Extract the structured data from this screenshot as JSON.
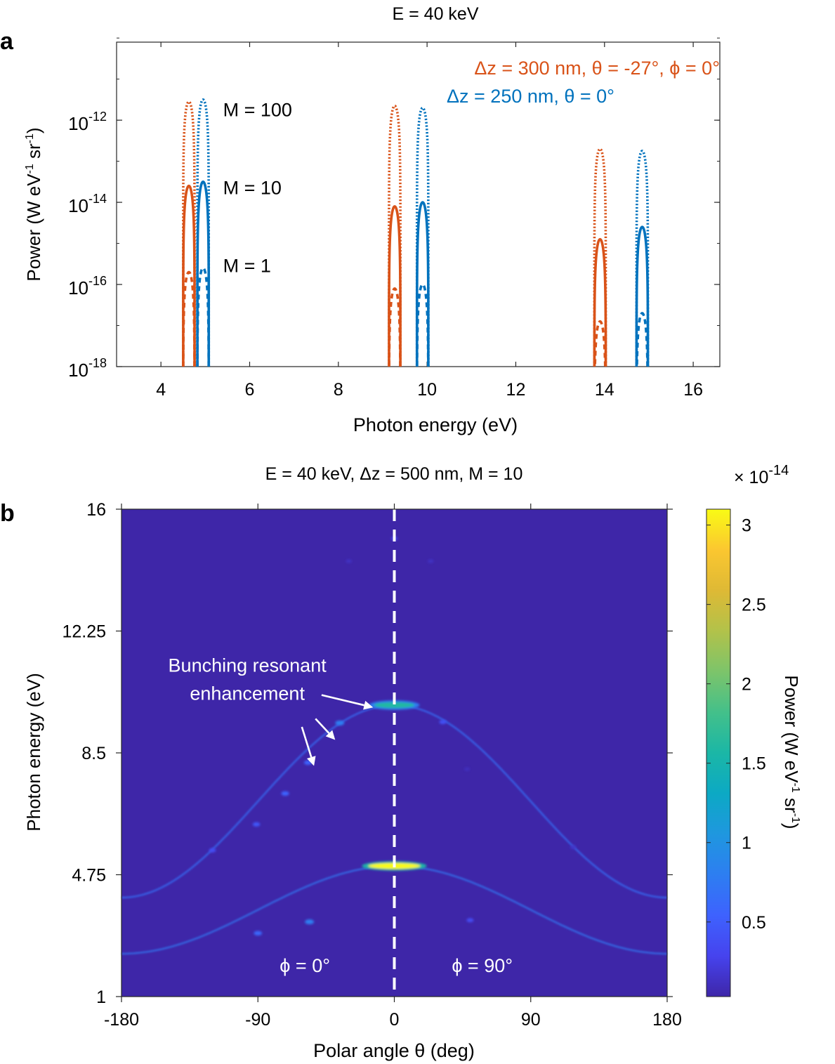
{
  "chart_data": [
    {
      "type": "line",
      "panel_label": "a",
      "title": "E = 40 keV",
      "xlabel": "Photon energy (eV)",
      "ylabel_parts": [
        "Power (W eV",
        "-1",
        " sr",
        "-1",
        ")"
      ],
      "x_ticks": [
        4,
        6,
        8,
        10,
        12,
        14,
        16
      ],
      "xlim": [
        3.0,
        16.6
      ],
      "ylim_log10": [
        -18,
        -10.1
      ],
      "y_ticks": [
        {
          "exp": -12,
          "label": "10",
          "sup": "-12"
        },
        {
          "exp": -14,
          "label": "10",
          "sup": "-14"
        },
        {
          "exp": -16,
          "label": "10",
          "sup": "-16"
        },
        {
          "exp": -18,
          "label": "10",
          "sup": "-18"
        }
      ],
      "legend": [
        {
          "text": "Δz = 300 nm, θ = -27°, ϕ = 0°",
          "color": "#D95319"
        },
        {
          "text": "Δz = 250 nm, θ = 0°",
          "color": "#0072BD"
        }
      ],
      "annotations": [
        {
          "text": "M = 100",
          "x": 5.4,
          "y_log10": -11.75
        },
        {
          "text": "M = 10",
          "x": 5.4,
          "y_log10": -13.65
        },
        {
          "text": "M = 1",
          "x": 5.4,
          "y_log10": -15.55
        }
      ],
      "peak_width_ev": 0.13,
      "series": [
        {
          "name": "Δz = 300 nm, θ = -27°, ϕ = 0°",
          "color": "#D95319",
          "peaks": [
            {
              "x": 4.63,
              "M1": -15.7,
              "M10": -13.6,
              "M100": -11.55
            },
            {
              "x": 9.27,
              "M1": -16.1,
              "M10": -14.1,
              "M100": -11.65
            },
            {
              "x": 13.9,
              "M1": -16.9,
              "M10": -14.9,
              "M100": -12.7
            }
          ]
        },
        {
          "name": "Δz = 250 nm, θ = 0°",
          "color": "#0072BD",
          "peaks": [
            {
              "x": 4.95,
              "M1": -15.6,
              "M10": -13.5,
              "M100": -11.5
            },
            {
              "x": 9.9,
              "M1": -16.0,
              "M10": -14.0,
              "M100": -11.7
            },
            {
              "x": 14.85,
              "M1": -16.7,
              "M10": -14.6,
              "M100": -12.75
            }
          ]
        }
      ],
      "line_styles": {
        "M1": "dashed",
        "M10": "solid",
        "M100": "dotted"
      }
    },
    {
      "type": "heatmap",
      "panel_label": "b",
      "title": "E = 40 keV, Δz = 500 nm, M = 10",
      "xlabel": "Polar angle θ (deg)",
      "ylabel": "Photon energy (eV)",
      "xlim": [
        -180,
        180
      ],
      "ylim": [
        1,
        16
      ],
      "x_ticks": [
        -180,
        -90,
        0,
        90,
        180
      ],
      "y_ticks": [
        1,
        4.75,
        8.5,
        12.25,
        16
      ],
      "y_tick_labels": [
        "1",
        "4.75",
        "8.5",
        "12.25",
        "16"
      ],
      "background_color": "#3E26A8",
      "colorbar": {
        "label_parts": [
          "Power (W eV",
          "-1",
          " sr",
          "-1",
          ")"
        ],
        "multiplier_base": "× 10",
        "multiplier_exp": "-14",
        "range": [
          0.03,
          3.1
        ],
        "ticks": [
          0.5,
          1,
          1.5,
          2,
          2.5,
          3
        ],
        "colormap": [
          "#3E26A8",
          "#4643EE",
          "#3E62FE",
          "#2D7EF1",
          "#1F97DF",
          "#0CA9C4",
          "#1BB7A6",
          "#43C08A",
          "#7DC46A",
          "#B2C24A",
          "#DEB935",
          "#FBC730",
          "#F9FB15"
        ]
      },
      "dashed_line": {
        "theta": 0,
        "color": "#FFFFFF"
      },
      "regions": [
        {
          "text": "ϕ = 0°",
          "theta": -59,
          "energy": 1.95
        },
        {
          "text": "ϕ = 90°",
          "theta": 58,
          "energy": 1.95
        }
      ],
      "annotation": {
        "text_lines": [
          "Bunching resonant",
          "enhancement"
        ],
        "theta": -97,
        "energy": 11.0,
        "arrows": [
          {
            "from": [
              -48,
              10.28
            ],
            "to": [
              -14,
              9.9
            ]
          },
          {
            "from": [
              -52,
              9.55
            ],
            "to": [
              -39,
              8.9
            ]
          },
          {
            "from": [
              -61,
              9.3
            ],
            "to": [
              -53,
              8.1
            ]
          }
        ]
      },
      "arcs": [
        {
          "order": 1,
          "peak_energy": 5.02,
          "strength": 0.3
        },
        {
          "order": 2,
          "peak_energy": 9.97,
          "strength": 0.22
        }
      ],
      "hotspots": [
        {
          "theta": 0,
          "energy": 5.02,
          "value": 3.1,
          "half_width_deg": 9
        },
        {
          "theta": 0,
          "energy": 9.97,
          "value": 1.6,
          "half_width_deg": 7
        },
        {
          "theta": -56,
          "energy": 3.3,
          "value": 0.8
        },
        {
          "theta": -90,
          "energy": 2.95,
          "value": 0.6
        },
        {
          "theta": 50,
          "energy": 3.35,
          "value": 0.35
        },
        {
          "theta": -36,
          "energy": 9.42,
          "value": 0.8
        },
        {
          "theta": -57,
          "energy": 8.2,
          "value": 0.55
        },
        {
          "theta": -72,
          "energy": 7.25,
          "value": 0.55
        },
        {
          "theta": -91,
          "energy": 6.3,
          "value": 0.45
        },
        {
          "theta": -120,
          "energy": 5.5,
          "value": 0.35
        },
        {
          "theta": 32,
          "energy": 9.45,
          "value": 0.4
        },
        {
          "theta": 0,
          "energy": 15.1,
          "value": 0.25
        },
        {
          "theta": -30,
          "energy": 14.4,
          "value": 0.12
        },
        {
          "theta": 24,
          "energy": 14.4,
          "value": 0.12
        },
        {
          "theta": 118,
          "energy": 5.6,
          "value": 0.15
        },
        {
          "theta": 48,
          "energy": 8.0,
          "value": 0.1
        }
      ]
    }
  ]
}
